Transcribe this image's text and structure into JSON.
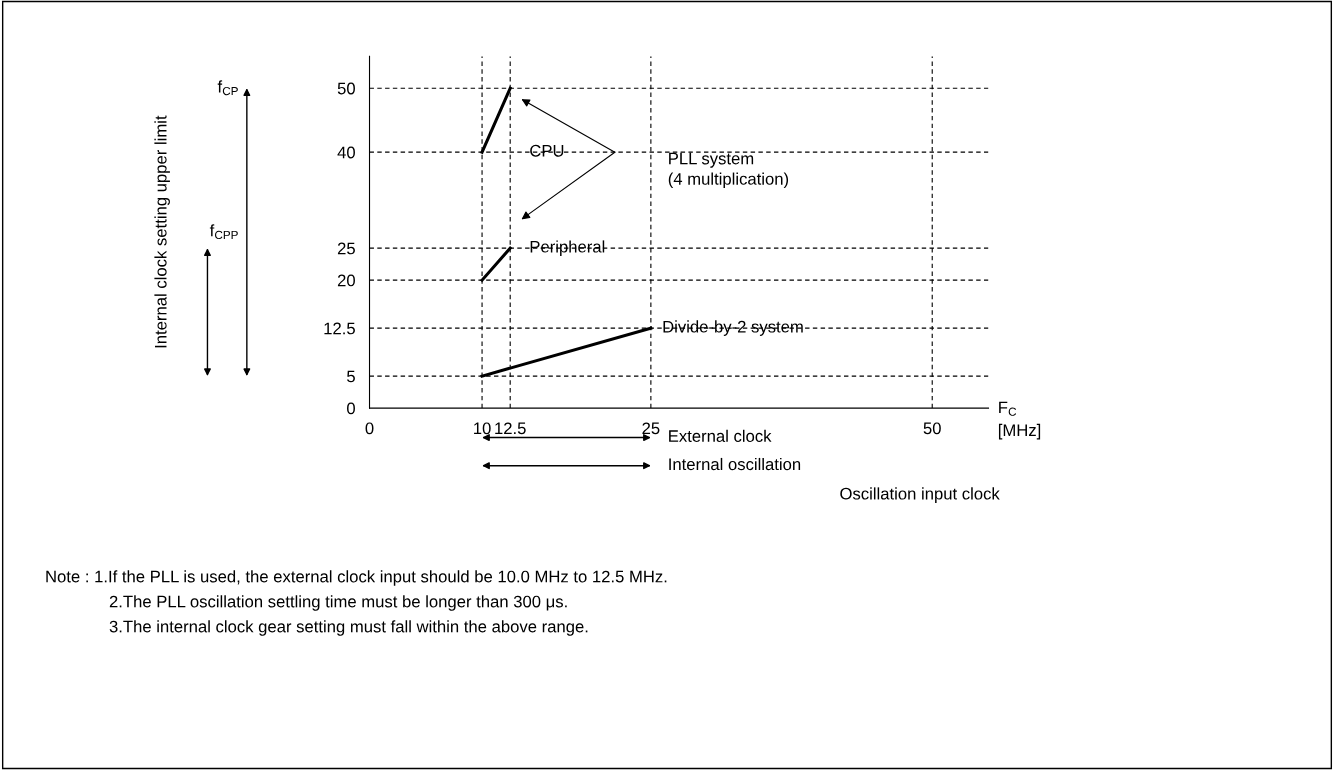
{
  "chart_data": {
    "type": "line",
    "xlabel": "F$_{C}$\n[MHz]",
    "series": [
      {
        "name": "CPU",
        "color": "#000000",
        "x": [
          10,
          12.5
        ],
        "values": [
          40,
          50
        ]
      },
      {
        "name": "Peripheral",
        "color": "#000000",
        "x": [
          10,
          12.5
        ],
        "values": [
          20,
          25
        ]
      },
      {
        "name": "Divide-by-2 system",
        "color": "#000000",
        "x": [
          10,
          25
        ],
        "values": [
          5,
          12.5
        ]
      }
    ],
    "xlim": [
      0,
      55
    ],
    "ylim": [
      0,
      55
    ],
    "xticks": [
      0,
      10,
      12.5,
      25,
      50
    ],
    "yticks": [
      0,
      5,
      12.5,
      20,
      25,
      40,
      50
    ],
    "ref_lines": [
      {
        "axis": "x",
        "value": 10,
        "line_style": "dashed"
      },
      {
        "axis": "x",
        "value": 12.5,
        "line_style": "dashed"
      },
      {
        "axis": "x",
        "value": 25,
        "line_style": "dashed"
      },
      {
        "axis": "x",
        "value": 50,
        "line_style": "dashed"
      },
      {
        "axis": "y",
        "value": 5,
        "line_style": "dashed"
      },
      {
        "axis": "y",
        "value": 12.5,
        "line_style": "dashed"
      },
      {
        "axis": "y",
        "value": 20,
        "line_style": "dashed"
      },
      {
        "axis": "y",
        "value": 25,
        "line_style": "dashed"
      },
      {
        "axis": "y",
        "value": 40,
        "line_style": "dashed"
      },
      {
        "axis": "y",
        "value": 50,
        "line_style": "dashed"
      }
    ],
    "annotations": [
      "f$_{CP}$",
      "f$_{CPP}$",
      "PLL system\n(4 multiplication)",
      "External clock",
      "Internal oscillation",
      "Oscillation input clock",
      "Note : 1.If the PLL is used, the external clock input should be 10.0 MHz to 12.5 MHz.",
      "2.The PLL oscillation settling time must be longer than 300 μs.",
      "3.The internal clock gear setting must fall within the above range.",
      "Internal clock setting upper limit"
    ],
    "grid": false,
    "legend": false,
    "marker": "none",
    "line_style": "solid"
  }
}
